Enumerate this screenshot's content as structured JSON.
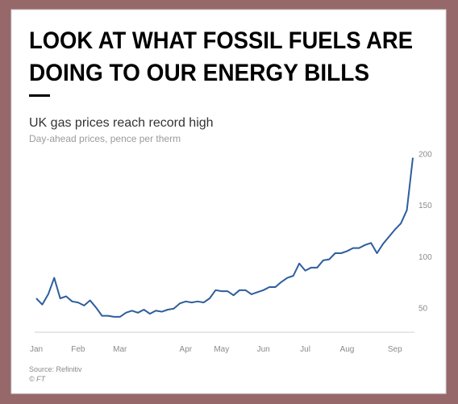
{
  "chart_data": {
    "type": "line",
    "title": [
      "LOOK AT WHAT FOSSIL FUELS ARE",
      "DOING TO OUR ENERGY BILLS"
    ],
    "subtitle": "UK gas prices reach record high",
    "ylabel": "Day-ahead prices, pence per therm",
    "source": "Source: Refinitiv",
    "credit": "© FT",
    "categories": [
      "Jan",
      null,
      null,
      null,
      null,
      null,
      null,
      "Feb",
      null,
      null,
      null,
      null,
      null,
      null,
      "Mar",
      null,
      null,
      null,
      null,
      null,
      null,
      null,
      null,
      null,
      null,
      "Apr",
      null,
      null,
      null,
      null,
      null,
      "May",
      null,
      null,
      null,
      null,
      null,
      null,
      "Jun",
      null,
      null,
      null,
      null,
      null,
      null,
      "Jul",
      null,
      null,
      null,
      null,
      null,
      null,
      "Aug",
      null,
      null,
      null,
      null,
      null,
      null,
      null,
      "Sep",
      null,
      null,
      null
    ],
    "values": [
      59,
      53,
      63,
      79,
      59,
      61,
      56,
      55,
      52,
      57,
      50,
      42,
      42,
      41,
      41,
      45,
      47,
      45,
      48,
      44,
      47,
      46,
      48,
      49,
      54,
      56,
      55,
      56,
      55,
      59,
      67,
      66,
      66,
      62,
      67,
      67,
      63,
      65,
      67,
      70,
      70,
      75,
      79,
      81,
      93,
      86,
      89,
      89,
      96,
      97,
      103,
      103,
      105,
      108,
      108,
      111,
      113,
      103,
      112,
      119,
      126,
      132,
      145,
      196
    ],
    "color": "#2e5e9c",
    "ylim": [
      26,
      202
    ],
    "yticks": [
      50,
      100,
      150,
      200
    ],
    "grid": false
  }
}
